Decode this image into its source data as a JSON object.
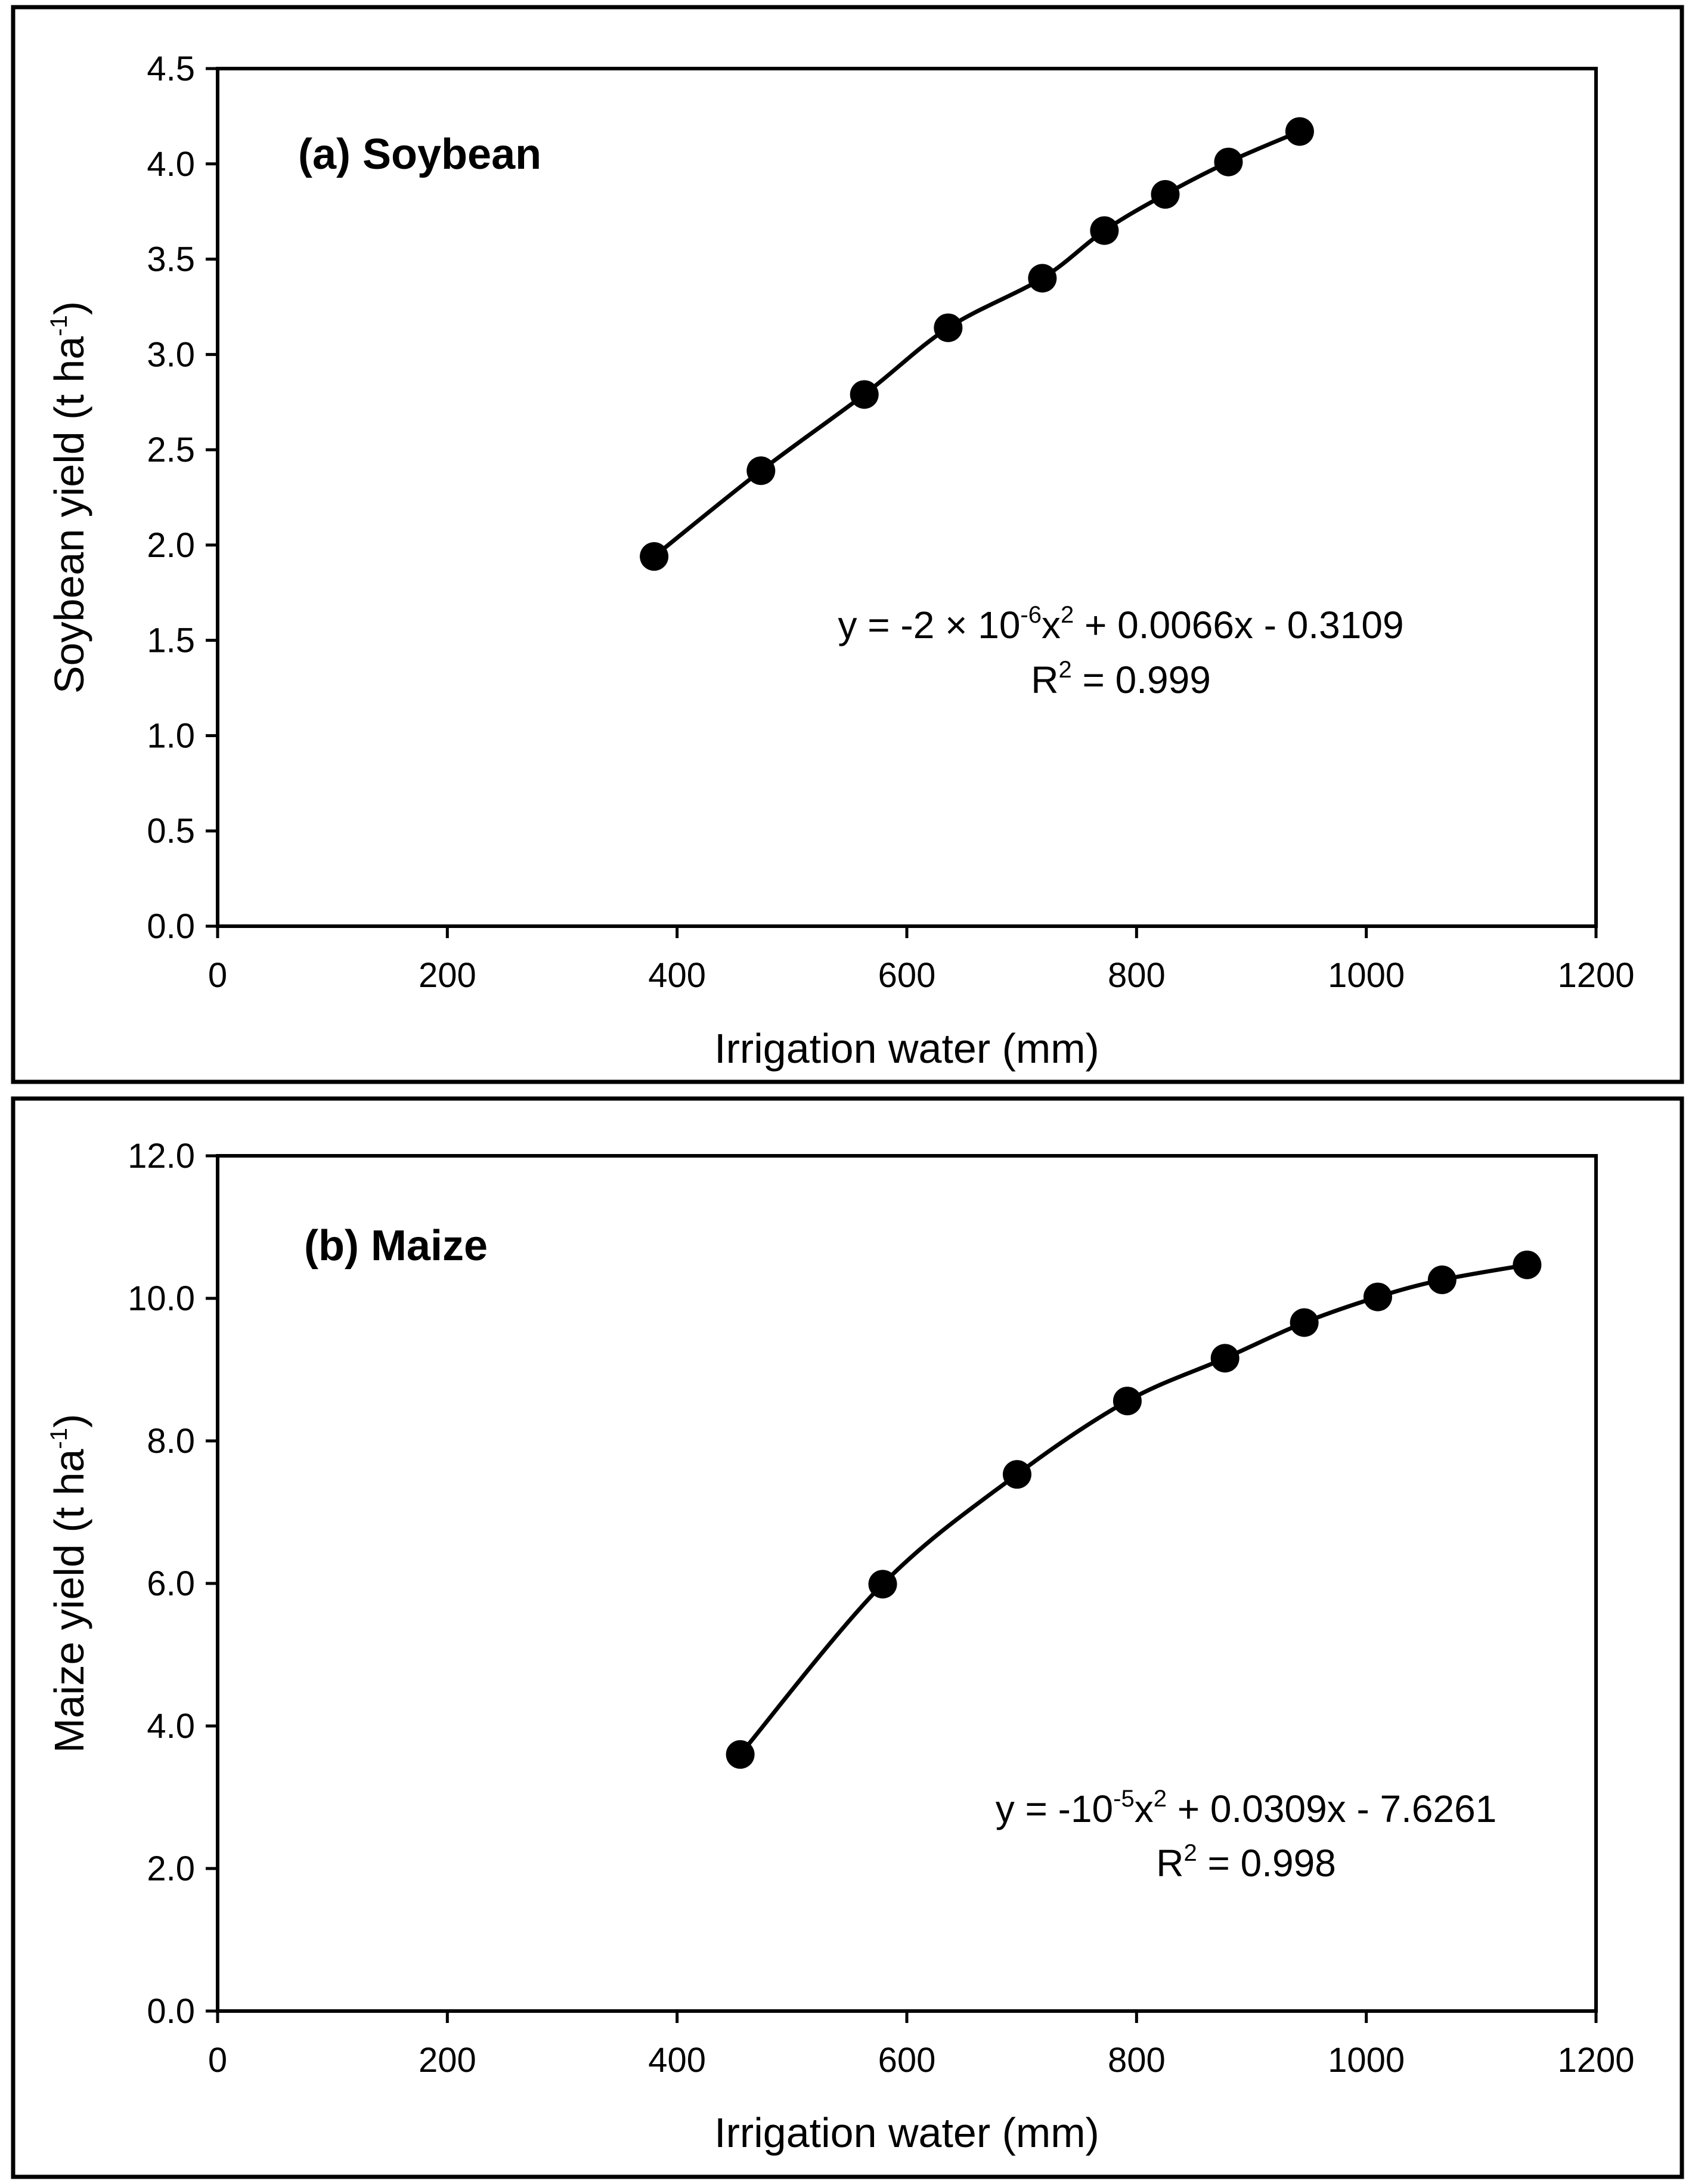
{
  "chart_data": [
    {
      "type": "scatter",
      "panel": "a",
      "title": "(a) Soybean",
      "xlabel": "Irrigation water (mm)",
      "ylabel": "Soybean yield (t ha",
      "ylabel_sup": "-1",
      "ylabel_tail": ")",
      "xlim": [
        0,
        1200
      ],
      "ylim": [
        0,
        4.5
      ],
      "x_ticks": [
        "0",
        "200",
        "400",
        "600",
        "800",
        "1000",
        "1200"
      ],
      "y_ticks": [
        "0.0",
        "0.5",
        "1.0",
        "1.5",
        "2.0",
        "2.5",
        "3.0",
        "3.5",
        "4.0",
        "4.5"
      ],
      "grid": false,
      "series": [
        {
          "name": "Soybean",
          "x": [
            380,
            473,
            563,
            636,
            718,
            772,
            825,
            880,
            942
          ],
          "y": [
            1.94,
            2.39,
            2.79,
            3.14,
            3.4,
            3.65,
            3.84,
            4.01,
            4.17
          ]
        }
      ],
      "fit": {
        "type": "polynomial",
        "coefficients": [
          -2e-06,
          0.0066,
          -0.3109
        ],
        "x_range": [
          380,
          942
        ],
        "equation_parts": [
          "y = -2 × 10",
          "-6",
          "x",
          "2",
          " + 0.0066x - 0.3109"
        ],
        "r2_parts": [
          "R",
          "2",
          " = 0.999"
        ]
      }
    },
    {
      "type": "scatter",
      "panel": "b",
      "title": "(b) Maize",
      "xlabel": "Irrigation water (mm)",
      "ylabel": "Maize yield (t ha",
      "ylabel_sup": "-1",
      "ylabel_tail": ")",
      "xlim": [
        0,
        1200
      ],
      "ylim": [
        0,
        12
      ],
      "x_ticks": [
        "0",
        "200",
        "400",
        "600",
        "800",
        "1000",
        "1200"
      ],
      "y_ticks": [
        "0.0",
        "2.0",
        "4.0",
        "6.0",
        "8.0",
        "10.0",
        "12.0"
      ],
      "grid": false,
      "series": [
        {
          "name": "Maize",
          "x": [
            455,
            579,
            696,
            792,
            877,
            946,
            1010,
            1066,
            1140
          ],
          "y": [
            3.6,
            5.99,
            7.53,
            8.56,
            9.16,
            9.66,
            10.02,
            10.26,
            10.47
          ]
        }
      ],
      "fit": {
        "type": "polynomial",
        "coefficients": [
          -1e-05,
          0.0309,
          -7.6261
        ],
        "x_range": [
          455,
          1140
        ],
        "equation_parts": [
          "y = -10",
          "-5",
          "x",
          "2",
          " + 0.0309x - 7.6261"
        ],
        "r2_parts": [
          "R",
          "2",
          " = 0.998"
        ]
      }
    }
  ]
}
